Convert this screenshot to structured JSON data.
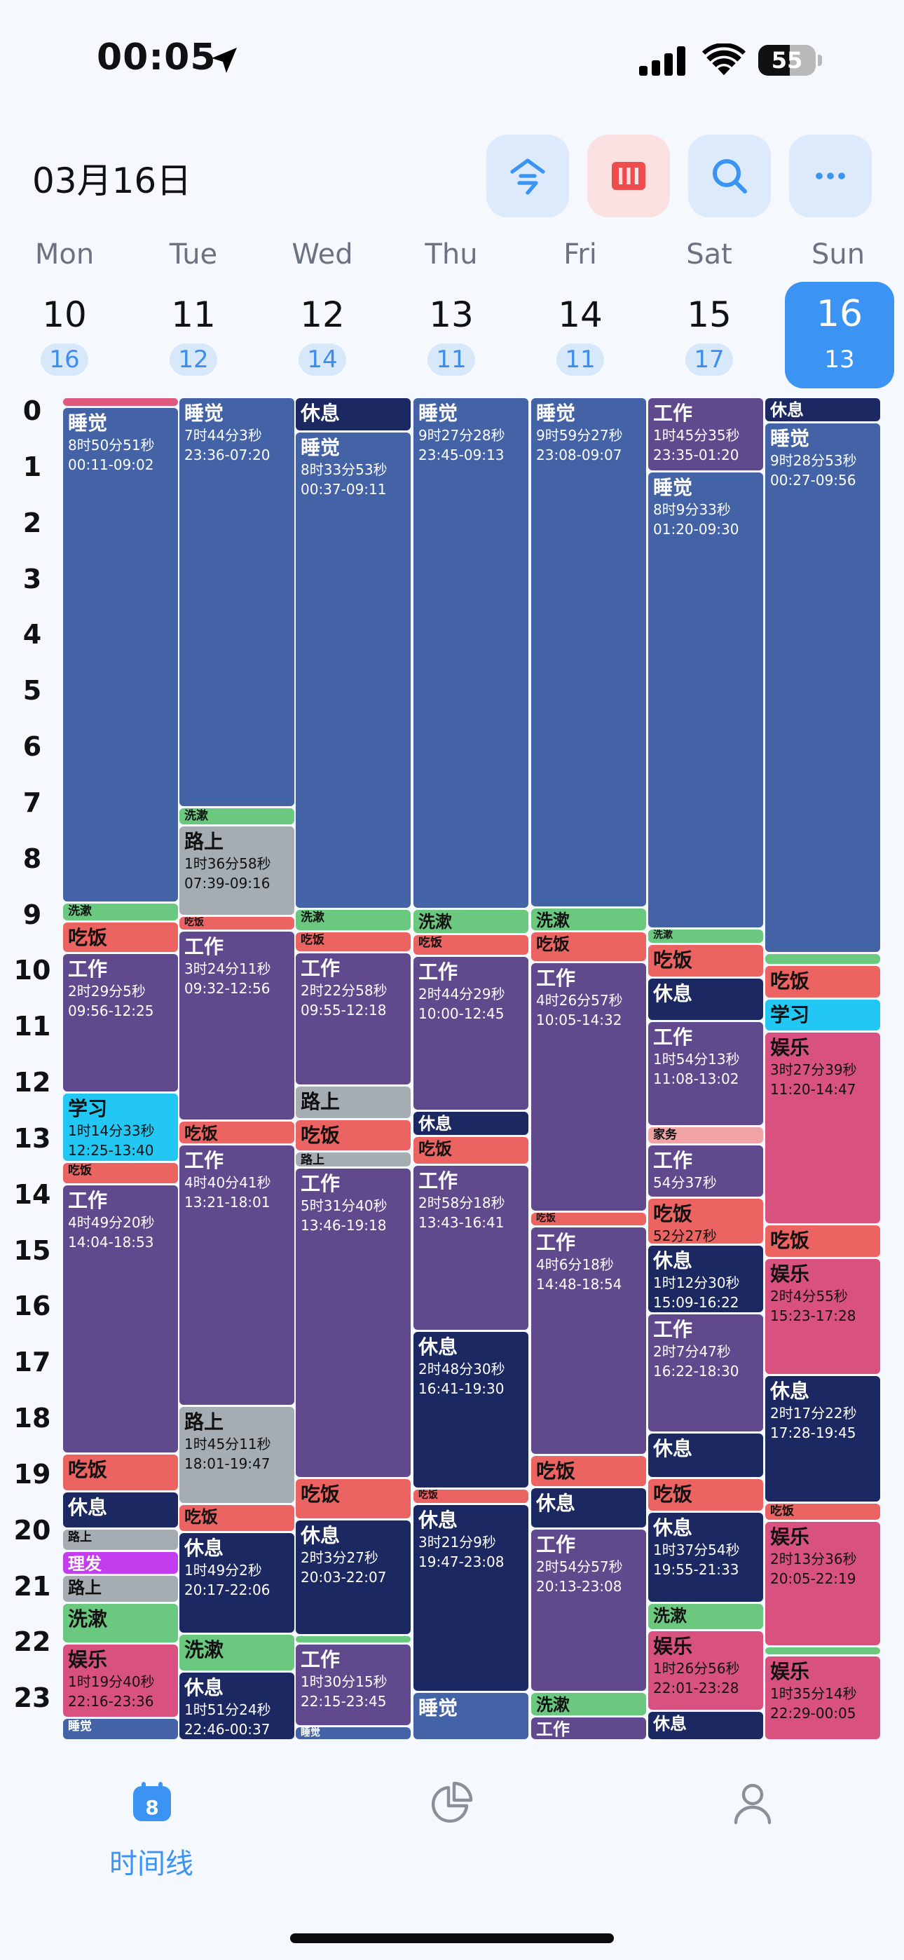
{
  "status_bar": {
    "time": "00:05",
    "battery": "55"
  },
  "header": {
    "date_title": "03月16日"
  },
  "days": [
    {
      "weekday": "Mon",
      "date": "10",
      "count": "16",
      "selected": false
    },
    {
      "weekday": "Tue",
      "date": "11",
      "count": "12",
      "selected": false
    },
    {
      "weekday": "Wed",
      "date": "12",
      "count": "14",
      "selected": false
    },
    {
      "weekday": "Thu",
      "date": "13",
      "count": "11",
      "selected": false
    },
    {
      "weekday": "Fri",
      "date": "14",
      "count": "11",
      "selected": false
    },
    {
      "weekday": "Sat",
      "date": "15",
      "count": "17",
      "selected": false
    },
    {
      "weekday": "Sun",
      "date": "16",
      "count": "13",
      "selected": true
    }
  ],
  "hours": [
    "0",
    "1",
    "2",
    "3",
    "4",
    "5",
    "6",
    "7",
    "8",
    "9",
    "10",
    "11",
    "12",
    "13",
    "14",
    "15",
    "16",
    "17",
    "18",
    "19",
    "20",
    "21",
    "22",
    "23"
  ],
  "categories": {
    "sleep": {
      "color": "#4462a6",
      "text": "#ffffff"
    },
    "rest": {
      "color": "#1b2861",
      "text": "#ffffff"
    },
    "work": {
      "color": "#60498c",
      "text": "#ffffff"
    },
    "eat": {
      "color": "#eb6461",
      "text": "#111111"
    },
    "wash": {
      "color": "#6ac87f",
      "text": "#111111"
    },
    "road": {
      "color": "#a5adb3",
      "text": "#111111"
    },
    "study": {
      "color": "#22c7f3",
      "text": "#111111"
    },
    "fun": {
      "color": "#d9527f",
      "text": "#111111"
    },
    "hair": {
      "color": "#c33ced",
      "text": "#ffffff"
    },
    "chore": {
      "color": "#f2a3a6",
      "text": "#111111"
    },
    "pink": {
      "color": "#e0587d",
      "text": "#111111"
    }
  },
  "columns": [
    {
      "events": [
        {
          "cat": "pink",
          "start": 0.0,
          "end": 0.18,
          "title": ""
        },
        {
          "cat": "sleep",
          "start": 0.18,
          "end": 9.03,
          "title": "睡觉",
          "dur": "8时50分51秒",
          "range": "00:11-09:02"
        },
        {
          "cat": "wash",
          "start": 9.03,
          "end": 9.37,
          "title": "洗漱"
        },
        {
          "cat": "eat",
          "start": 9.37,
          "end": 9.93,
          "title": "吃饭"
        },
        {
          "cat": "work",
          "start": 9.93,
          "end": 12.42,
          "title": "工作",
          "dur": "2时29分5秒",
          "range": "09:56-12:25"
        },
        {
          "cat": "study",
          "start": 12.42,
          "end": 13.67,
          "title": "学习",
          "dur": "1时14分33秒",
          "range": "12:25-13:40"
        },
        {
          "cat": "eat",
          "start": 13.67,
          "end": 14.07,
          "title": "吃饭"
        },
        {
          "cat": "work",
          "start": 14.07,
          "end": 18.88,
          "title": "工作",
          "dur": "4时49分20秒",
          "range": "14:04-18:53"
        },
        {
          "cat": "eat",
          "start": 18.88,
          "end": 19.55,
          "title": "吃饭"
        },
        {
          "cat": "rest",
          "start": 19.55,
          "end": 20.22,
          "title": "休息"
        },
        {
          "cat": "road",
          "start": 20.22,
          "end": 20.62,
          "title": "路上"
        },
        {
          "cat": "hair",
          "start": 20.62,
          "end": 21.05,
          "title": "理发"
        },
        {
          "cat": "road",
          "start": 21.05,
          "end": 21.55,
          "title": "路上"
        },
        {
          "cat": "wash",
          "start": 21.55,
          "end": 22.27,
          "title": "洗漱"
        },
        {
          "cat": "fun",
          "start": 22.27,
          "end": 23.6,
          "title": "娱乐",
          "dur": "1时19分40秒",
          "range": "22:16-23:36"
        },
        {
          "cat": "sleep",
          "start": 23.6,
          "end": 24.0,
          "title": "睡觉"
        }
      ]
    },
    {
      "events": [
        {
          "cat": "sleep",
          "start": 0.0,
          "end": 7.33,
          "title": "睡觉",
          "dur": "7时44分3秒",
          "range": "23:36-07:20"
        },
        {
          "cat": "wash",
          "start": 7.33,
          "end": 7.65,
          "title": "洗漱"
        },
        {
          "cat": "road",
          "start": 7.65,
          "end": 9.27,
          "title": "路上",
          "dur": "1时36分58秒",
          "range": "07:39-09:16"
        },
        {
          "cat": "eat",
          "start": 9.27,
          "end": 9.53,
          "title": "吃饭"
        },
        {
          "cat": "work",
          "start": 9.53,
          "end": 12.93,
          "title": "工作",
          "dur": "3时24分11秒",
          "range": "09:32-12:56"
        },
        {
          "cat": "eat",
          "start": 12.93,
          "end": 13.35,
          "title": "吃饭"
        },
        {
          "cat": "work",
          "start": 13.35,
          "end": 18.02,
          "title": "工作",
          "dur": "4时40分41秒",
          "range": "13:21-18:01"
        },
        {
          "cat": "road",
          "start": 18.02,
          "end": 19.78,
          "title": "路上",
          "dur": "1时45分11秒",
          "range": "18:01-19:47"
        },
        {
          "cat": "eat",
          "start": 19.78,
          "end": 20.28,
          "title": "吃饭"
        },
        {
          "cat": "rest",
          "start": 20.28,
          "end": 22.1,
          "title": "休息",
          "dur": "1时49分2秒",
          "range": "20:17-22:06"
        },
        {
          "cat": "wash",
          "start": 22.1,
          "end": 22.77,
          "title": "洗漱"
        },
        {
          "cat": "rest",
          "start": 22.77,
          "end": 24.0,
          "title": "休息",
          "dur": "1时51分24秒",
          "range": "22:46-00:37"
        }
      ]
    },
    {
      "events": [
        {
          "cat": "rest",
          "start": 0.0,
          "end": 0.62,
          "title": "休息"
        },
        {
          "cat": "sleep",
          "start": 0.62,
          "end": 9.15,
          "title": "睡觉",
          "dur": "8时33分53秒",
          "range": "00:37-09:11"
        },
        {
          "cat": "wash",
          "start": 9.15,
          "end": 9.55,
          "title": "洗漱"
        },
        {
          "cat": "eat",
          "start": 9.55,
          "end": 9.92,
          "title": "吃饭"
        },
        {
          "cat": "work",
          "start": 9.92,
          "end": 12.3,
          "title": "工作",
          "dur": "2时22分58秒",
          "range": "09:55-12:18"
        },
        {
          "cat": "road",
          "start": 12.3,
          "end": 12.9,
          "title": "路上"
        },
        {
          "cat": "eat",
          "start": 12.9,
          "end": 13.48,
          "title": "吃饭"
        },
        {
          "cat": "road",
          "start": 13.48,
          "end": 13.77,
          "title": "路上"
        },
        {
          "cat": "work",
          "start": 13.77,
          "end": 19.32,
          "title": "工作",
          "dur": "5时31分40秒",
          "range": "13:46-19:18"
        },
        {
          "cat": "eat",
          "start": 19.32,
          "end": 20.05,
          "title": "吃饭"
        },
        {
          "cat": "rest",
          "start": 20.05,
          "end": 22.12,
          "title": "休息",
          "dur": "2时3分27秒",
          "range": "20:03-22:07"
        },
        {
          "cat": "wash",
          "start": 22.12,
          "end": 22.27,
          "title": ""
        },
        {
          "cat": "work",
          "start": 22.27,
          "end": 23.75,
          "title": "工作",
          "dur": "1时30分15秒",
          "range": "22:15-23:45"
        },
        {
          "cat": "sleep",
          "start": 23.75,
          "end": 24.0,
          "title": "睡觉"
        }
      ]
    },
    {
      "events": [
        {
          "cat": "sleep",
          "start": 0.0,
          "end": 9.15,
          "title": "睡觉",
          "dur": "9时27分28秒",
          "range": "23:45-09:13"
        },
        {
          "cat": "wash",
          "start": 9.15,
          "end": 9.6,
          "title": "洗漱"
        },
        {
          "cat": "eat",
          "start": 9.6,
          "end": 9.98,
          "title": "吃饭"
        },
        {
          "cat": "work",
          "start": 9.98,
          "end": 12.75,
          "title": "工作",
          "dur": "2时44分29秒",
          "range": "10:00-12:45"
        },
        {
          "cat": "rest",
          "start": 12.75,
          "end": 13.2,
          "title": "休息"
        },
        {
          "cat": "eat",
          "start": 13.2,
          "end": 13.72,
          "title": "吃饭"
        },
        {
          "cat": "work",
          "start": 13.72,
          "end": 16.68,
          "title": "工作",
          "dur": "2时58分18秒",
          "range": "13:43-16:41"
        },
        {
          "cat": "rest",
          "start": 16.68,
          "end": 19.5,
          "title": "休息",
          "dur": "2时48分30秒",
          "range": "16:41-19:30"
        },
        {
          "cat": "eat",
          "start": 19.5,
          "end": 19.78,
          "title": "吃饭"
        },
        {
          "cat": "rest",
          "start": 19.78,
          "end": 23.13,
          "title": "休息",
          "dur": "3时21分9秒",
          "range": "19:47-23:08"
        },
        {
          "cat": "sleep",
          "start": 23.13,
          "end": 24.0,
          "title": "睡觉"
        }
      ]
    },
    {
      "events": [
        {
          "cat": "sleep",
          "start": 0.0,
          "end": 9.12,
          "title": "睡觉",
          "dur": "9时59分27秒",
          "range": "23:08-09:07"
        },
        {
          "cat": "wash",
          "start": 9.12,
          "end": 9.55,
          "title": "洗漱"
        },
        {
          "cat": "eat",
          "start": 9.55,
          "end": 10.1,
          "title": "吃饭"
        },
        {
          "cat": "work",
          "start": 10.1,
          "end": 14.55,
          "title": "工作",
          "dur": "4时26分57秒",
          "range": "10:05-14:32"
        },
        {
          "cat": "eat",
          "start": 14.55,
          "end": 14.82,
          "title": "吃饭"
        },
        {
          "cat": "work",
          "start": 14.82,
          "end": 18.9,
          "title": "工作",
          "dur": "4时6分18秒",
          "range": "14:48-18:54"
        },
        {
          "cat": "eat",
          "start": 18.9,
          "end": 19.48,
          "title": "吃饭"
        },
        {
          "cat": "rest",
          "start": 19.48,
          "end": 20.22,
          "title": "休息"
        },
        {
          "cat": "work",
          "start": 20.22,
          "end": 23.13,
          "title": "工作",
          "dur": "2时54分57秒",
          "range": "20:13-23:08"
        },
        {
          "cat": "wash",
          "start": 23.13,
          "end": 23.57,
          "title": "洗漱"
        },
        {
          "cat": "work",
          "start": 23.57,
          "end": 24.0,
          "title": "工作"
        }
      ]
    },
    {
      "events": [
        {
          "cat": "work",
          "start": 0.0,
          "end": 1.33,
          "title": "工作",
          "dur": "1时45分35秒",
          "range": "23:35-01:20"
        },
        {
          "cat": "sleep",
          "start": 1.33,
          "end": 9.5,
          "title": "睡觉",
          "dur": "8时9分33秒",
          "range": "01:20-09:30"
        },
        {
          "cat": "wash",
          "start": 9.5,
          "end": 9.77,
          "title": "洗漱"
        },
        {
          "cat": "eat",
          "start": 9.77,
          "end": 10.37,
          "title": "吃饭"
        },
        {
          "cat": "rest",
          "start": 10.37,
          "end": 11.15,
          "title": "休息"
        },
        {
          "cat": "work",
          "start": 11.15,
          "end": 13.03,
          "title": "工作",
          "dur": "1时54分13秒",
          "range": "11:08-13:02"
        },
        {
          "cat": "chore",
          "start": 13.03,
          "end": 13.35,
          "title": "家务"
        },
        {
          "cat": "work",
          "start": 13.35,
          "end": 14.3,
          "title": "工作",
          "dur": "54分37秒"
        },
        {
          "cat": "eat",
          "start": 14.3,
          "end": 15.15,
          "title": "吃饭",
          "dur": "52分27秒"
        },
        {
          "cat": "rest",
          "start": 15.15,
          "end": 16.37,
          "title": "休息",
          "dur": "1时12分30秒",
          "range": "15:09-16:22"
        },
        {
          "cat": "work",
          "start": 16.37,
          "end": 18.5,
          "title": "工作",
          "dur": "2时7分47秒",
          "range": "16:22-18:30"
        },
        {
          "cat": "rest",
          "start": 18.5,
          "end": 19.32,
          "title": "休息"
        },
        {
          "cat": "eat",
          "start": 19.32,
          "end": 19.92,
          "title": "吃饭"
        },
        {
          "cat": "rest",
          "start": 19.92,
          "end": 21.55,
          "title": "休息",
          "dur": "1时37分54秒",
          "range": "19:55-21:33"
        },
        {
          "cat": "wash",
          "start": 21.55,
          "end": 22.03,
          "title": "洗漱"
        },
        {
          "cat": "fun",
          "start": 22.03,
          "end": 23.48,
          "title": "娱乐",
          "dur": "1时26分56秒",
          "range": "22:01-23:28"
        },
        {
          "cat": "rest",
          "start": 23.48,
          "end": 24.0,
          "title": "休息"
        }
      ]
    },
    {
      "events": [
        {
          "cat": "rest",
          "start": 0.0,
          "end": 0.45,
          "title": "休息"
        },
        {
          "cat": "sleep",
          "start": 0.45,
          "end": 9.93,
          "title": "睡觉",
          "dur": "9时28分53秒",
          "range": "00:27-09:56"
        },
        {
          "cat": "wash",
          "start": 9.93,
          "end": 10.15,
          "title": ""
        },
        {
          "cat": "eat",
          "start": 10.15,
          "end": 10.75,
          "title": "吃饭"
        },
        {
          "cat": "study",
          "start": 10.75,
          "end": 11.33,
          "title": "学习"
        },
        {
          "cat": "fun",
          "start": 11.33,
          "end": 14.78,
          "title": "娱乐",
          "dur": "3时27分39秒",
          "range": "11:20-14:47"
        },
        {
          "cat": "eat",
          "start": 14.78,
          "end": 15.38,
          "title": "吃饭"
        },
        {
          "cat": "fun",
          "start": 15.38,
          "end": 17.47,
          "title": "娱乐",
          "dur": "2时4分55秒",
          "range": "15:23-17:28"
        },
        {
          "cat": "rest",
          "start": 17.47,
          "end": 19.75,
          "title": "休息",
          "dur": "2时17分22秒",
          "range": "17:28-19:45"
        },
        {
          "cat": "eat",
          "start": 19.75,
          "end": 20.08,
          "title": "吃饭"
        },
        {
          "cat": "fun",
          "start": 20.08,
          "end": 22.32,
          "title": "娱乐",
          "dur": "2时13分36秒",
          "range": "20:05-22:19"
        },
        {
          "cat": "wash",
          "start": 22.32,
          "end": 22.48,
          "title": ""
        },
        {
          "cat": "fun",
          "start": 22.48,
          "end": 24.0,
          "title": "娱乐",
          "dur": "1时35分14秒",
          "range": "22:29-00:05"
        }
      ]
    }
  ],
  "tabbar": {
    "timeline_label": "时间线",
    "timeline_badge": "8"
  }
}
